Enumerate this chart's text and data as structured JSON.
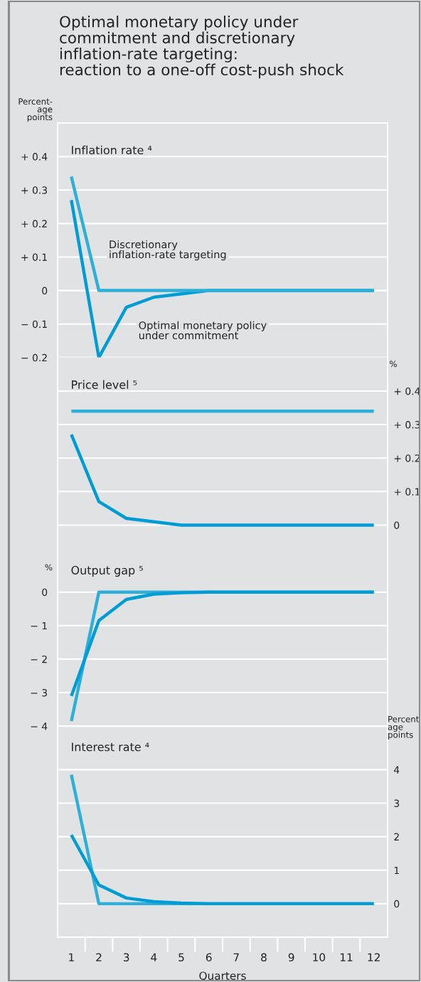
{
  "chart_data": [
    {
      "type": "line",
      "title": "Inflation rate ⁴",
      "ylabel": "Percent-\nage\npoints",
      "annotations": [
        "Optimal monetary policy under\ncommitment and discretionary\ninflation-rate targeting:\nreaction to a one-off cost-push shock"
      ],
      "categories": [
        "1",
        "2",
        "3",
        "4",
        "5",
        "6",
        "7",
        "8",
        "9",
        "10",
        "11",
        "12"
      ],
      "ylim": [
        -0.2,
        0.5
      ],
      "yticks": [
        {
          "value": -0.2,
          "label": "− 0.2"
        },
        {
          "value": -0.1,
          "label": "− 0.1"
        },
        0,
        {
          "value": 0.1,
          "label": "+ 0.1"
        },
        {
          "value": 0.2,
          "label": "+ 0.2"
        },
        {
          "value": 0.3,
          "label": "+ 0.3"
        },
        {
          "value": 0.4,
          "label": "+ 0.4"
        }
      ],
      "grid": "y",
      "tick_labels": "y",
      "series": [
        {
          "name": "Optimal monetary policy\nunder commitment",
          "color": "#009cd6",
          "values": [
            0.27,
            -0.2,
            -0.05,
            -0.02,
            -0.01,
            0,
            0,
            0,
            0,
            0,
            0,
            0
          ]
        },
        {
          "name": "Discretionary\ninflation-rate targeting",
          "color": "#2cb0d9",
          "values": [
            0.34,
            0,
            0,
            0,
            0,
            0,
            0,
            0,
            0,
            0,
            0,
            0
          ]
        }
      ]
    },
    {
      "type": "line",
      "title": "Price level ⁵",
      "y2label": "%",
      "categories": [
        "1",
        "2",
        "3",
        "4",
        "5",
        "6",
        "7",
        "8",
        "9",
        "10",
        "11",
        "12"
      ],
      "y2lim": [
        -0.1,
        0.5
      ],
      "y2ticks": [
        0,
        {
          "value": 0.1,
          "label": "+ 0.1"
        },
        {
          "value": 0.2,
          "label": "+ 0.2"
        },
        {
          "value": 0.3,
          "label": "+ 0.3"
        },
        {
          "value": 0.4,
          "label": "+ 0.4"
        }
      ],
      "grid": "y",
      "tick_labels": "y",
      "series": [
        {
          "color": "#2cb0d9",
          "axis": "y2",
          "values": [
            0.34,
            0.34,
            0.34,
            0.34,
            0.34,
            0.34,
            0.34,
            0.34,
            0.34,
            0.34,
            0.34,
            0.34
          ]
        },
        {
          "color": "#009cd6",
          "axis": "y2",
          "values": [
            0.27,
            0.07,
            0.02,
            0.01,
            0,
            0,
            0,
            0,
            0,
            0,
            0,
            0
          ]
        }
      ]
    },
    {
      "type": "line",
      "title": "Output gap ⁵",
      "ylabel": "%",
      "categories": [
        "1",
        "2",
        "3",
        "4",
        "5",
        "6",
        "7",
        "8",
        "9",
        "10",
        "11",
        "12"
      ],
      "ylim": [
        -4.4,
        1
      ],
      "yticks": [
        {
          "value": -4,
          "label": "− 4"
        },
        {
          "value": -3,
          "label": "− 3"
        },
        {
          "value": -2,
          "label": "− 2"
        },
        {
          "value": -1,
          "label": "− 1"
        },
        0
      ],
      "grid": "y",
      "tick_labels": "y",
      "series": [
        {
          "color": "#2cb0d9",
          "values": [
            -3.85,
            0,
            0,
            0,
            0,
            0,
            0,
            0,
            0,
            0,
            0,
            0
          ]
        },
        {
          "color": "#009cd6",
          "values": [
            -3.1,
            -0.85,
            -0.22,
            -0.06,
            -0.02,
            0,
            0,
            0,
            0,
            0,
            0,
            0
          ]
        }
      ]
    },
    {
      "type": "line",
      "title": "Interest rate ⁴",
      "y2label": "Percent\nage\npoints",
      "xlabel": "Quarters",
      "categories": [
        "1",
        "2",
        "3",
        "4",
        "5",
        "6",
        "7",
        "8",
        "9",
        "10",
        "11",
        "12"
      ],
      "y2lim": [
        -1,
        4.9
      ],
      "y2ticks": [
        0,
        1,
        2,
        3,
        4
      ],
      "grid": "y",
      "series": [
        {
          "color": "#2cb0d9",
          "axis": "y2",
          "values": [
            3.85,
            0,
            0,
            0,
            0,
            0,
            0,
            0,
            0,
            0,
            0,
            0
          ]
        },
        {
          "color": "#009cd6",
          "axis": "y2",
          "values": [
            2.05,
            0.56,
            0.17,
            0.06,
            0.02,
            0,
            0,
            0,
            0,
            0,
            0,
            0
          ]
        }
      ]
    }
  ]
}
